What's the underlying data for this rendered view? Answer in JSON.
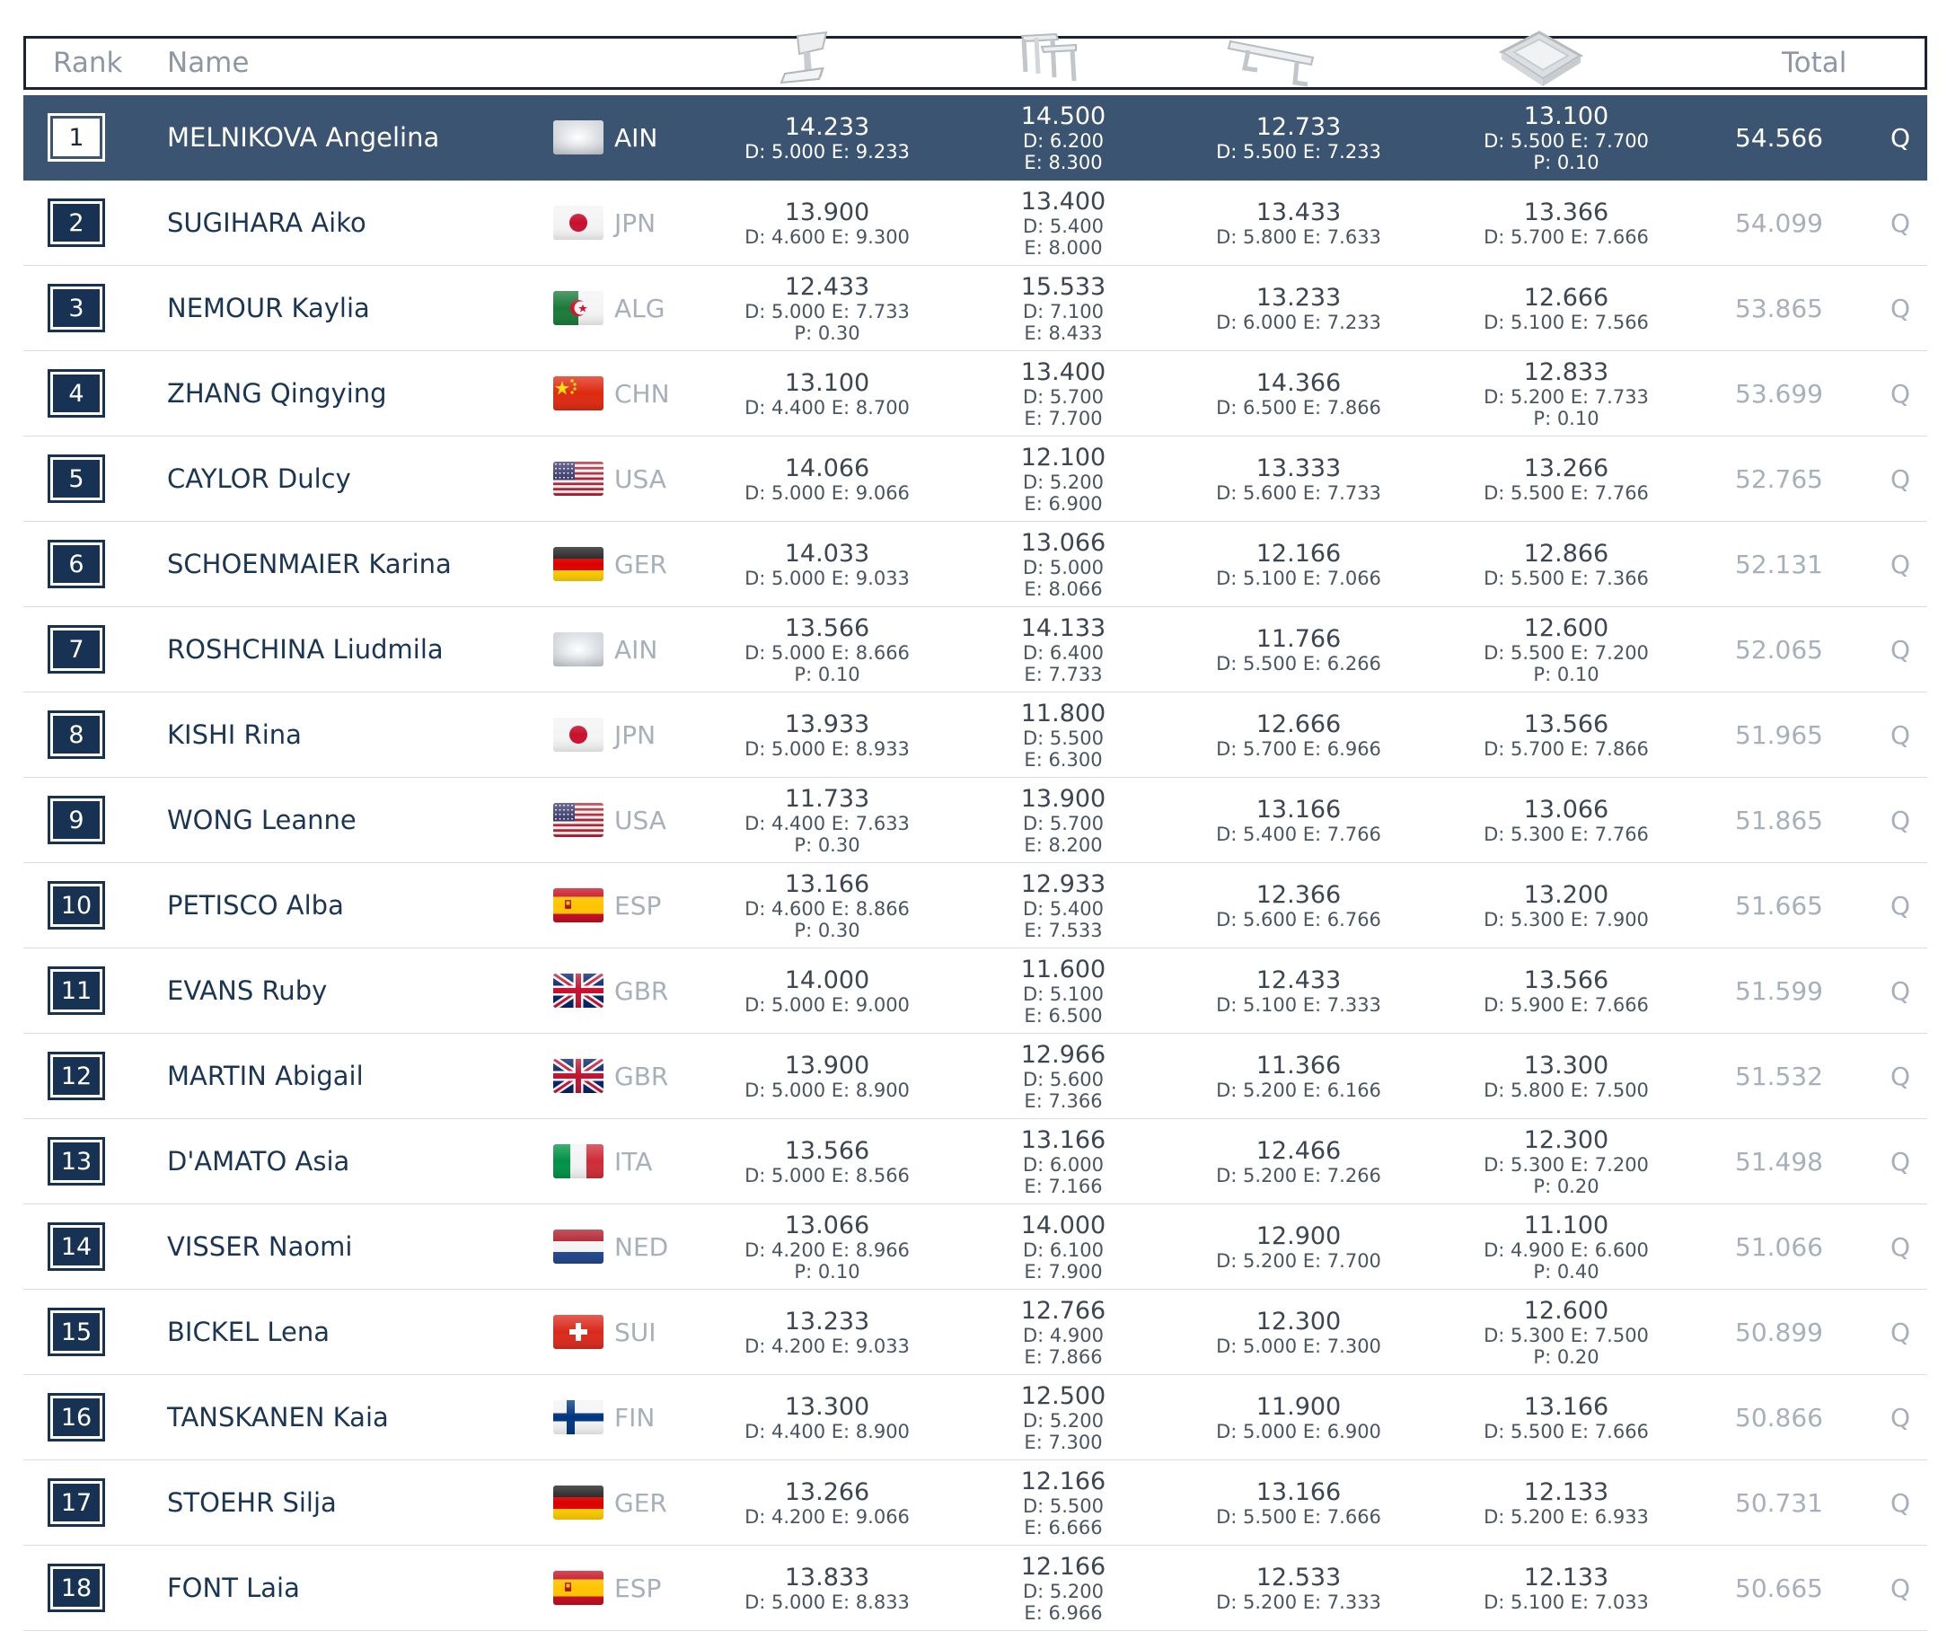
{
  "header": {
    "rank": "Rank",
    "name": "Name",
    "total": "Total",
    "apparatus_icons": [
      "vault-icon",
      "uneven-bars-icon",
      "balance-beam-icon",
      "floor-icon"
    ]
  },
  "colors": {
    "highlight": "#3a5472",
    "rank_box": "#173252",
    "name": "#1b3654",
    "muted": "#a7b0ba"
  },
  "rows": [
    {
      "rank": "1",
      "name": "MELNIKOVA Angelina",
      "noc": "AIN",
      "flag": "ain",
      "total": "54.566",
      "q": "Q",
      "apps": [
        {
          "score": "14.233",
          "lines": [
            "D: 5.000 E: 9.233"
          ]
        },
        {
          "score": "14.500",
          "lines": [
            "D: 6.200",
            "E: 8.300"
          ]
        },
        {
          "score": "12.733",
          "lines": [
            "D: 5.500 E: 7.233"
          ]
        },
        {
          "score": "13.100",
          "lines": [
            "D: 5.500 E: 7.700",
            "P: 0.10"
          ]
        }
      ]
    },
    {
      "rank": "2",
      "name": "SUGIHARA Aiko",
      "noc": "JPN",
      "flag": "jpn",
      "total": "54.099",
      "q": "Q",
      "apps": [
        {
          "score": "13.900",
          "lines": [
            "D: 4.600 E: 9.300"
          ]
        },
        {
          "score": "13.400",
          "lines": [
            "D: 5.400",
            "E: 8.000"
          ]
        },
        {
          "score": "13.433",
          "lines": [
            "D: 5.800 E: 7.633"
          ]
        },
        {
          "score": "13.366",
          "lines": [
            "D: 5.700 E: 7.666"
          ]
        }
      ]
    },
    {
      "rank": "3",
      "name": "NEMOUR Kaylia",
      "noc": "ALG",
      "flag": "alg",
      "total": "53.865",
      "q": "Q",
      "apps": [
        {
          "score": "12.433",
          "lines": [
            "D: 5.000 E: 7.733",
            "P: 0.30"
          ]
        },
        {
          "score": "15.533",
          "lines": [
            "D: 7.100",
            "E: 8.433"
          ]
        },
        {
          "score": "13.233",
          "lines": [
            "D: 6.000 E: 7.233"
          ]
        },
        {
          "score": "12.666",
          "lines": [
            "D: 5.100 E: 7.566"
          ]
        }
      ]
    },
    {
      "rank": "4",
      "name": "ZHANG Qingying",
      "noc": "CHN",
      "flag": "chn",
      "total": "53.699",
      "q": "Q",
      "apps": [
        {
          "score": "13.100",
          "lines": [
            "D: 4.400 E: 8.700"
          ]
        },
        {
          "score": "13.400",
          "lines": [
            "D: 5.700",
            "E: 7.700"
          ]
        },
        {
          "score": "14.366",
          "lines": [
            "D: 6.500 E: 7.866"
          ]
        },
        {
          "score": "12.833",
          "lines": [
            "D: 5.200 E: 7.733",
            "P: 0.10"
          ]
        }
      ]
    },
    {
      "rank": "5",
      "name": "CAYLOR Dulcy",
      "noc": "USA",
      "flag": "usa",
      "total": "52.765",
      "q": "Q",
      "apps": [
        {
          "score": "14.066",
          "lines": [
            "D: 5.000 E: 9.066"
          ]
        },
        {
          "score": "12.100",
          "lines": [
            "D: 5.200",
            "E: 6.900"
          ]
        },
        {
          "score": "13.333",
          "lines": [
            "D: 5.600 E: 7.733"
          ]
        },
        {
          "score": "13.266",
          "lines": [
            "D: 5.500 E: 7.766"
          ]
        }
      ]
    },
    {
      "rank": "6",
      "name": "SCHOENMAIER Karina",
      "noc": "GER",
      "flag": "ger",
      "total": "52.131",
      "q": "Q",
      "apps": [
        {
          "score": "14.033",
          "lines": [
            "D: 5.000 E: 9.033"
          ]
        },
        {
          "score": "13.066",
          "lines": [
            "D: 5.000",
            "E: 8.066"
          ]
        },
        {
          "score": "12.166",
          "lines": [
            "D: 5.100 E: 7.066"
          ]
        },
        {
          "score": "12.866",
          "lines": [
            "D: 5.500 E: 7.366"
          ]
        }
      ]
    },
    {
      "rank": "7",
      "name": "ROSHCHINA Liudmila",
      "noc": "AIN",
      "flag": "ain",
      "total": "52.065",
      "q": "Q",
      "apps": [
        {
          "score": "13.566",
          "lines": [
            "D: 5.000 E: 8.666",
            "P: 0.10"
          ]
        },
        {
          "score": "14.133",
          "lines": [
            "D: 6.400",
            "E: 7.733"
          ]
        },
        {
          "score": "11.766",
          "lines": [
            "D: 5.500 E: 6.266"
          ]
        },
        {
          "score": "12.600",
          "lines": [
            "D: 5.500 E: 7.200",
            "P: 0.10"
          ]
        }
      ]
    },
    {
      "rank": "8",
      "name": "KISHI Rina",
      "noc": "JPN",
      "flag": "jpn",
      "total": "51.965",
      "q": "Q",
      "apps": [
        {
          "score": "13.933",
          "lines": [
            "D: 5.000 E: 8.933"
          ]
        },
        {
          "score": "11.800",
          "lines": [
            "D: 5.500",
            "E: 6.300"
          ]
        },
        {
          "score": "12.666",
          "lines": [
            "D: 5.700 E: 6.966"
          ]
        },
        {
          "score": "13.566",
          "lines": [
            "D: 5.700 E: 7.866"
          ]
        }
      ]
    },
    {
      "rank": "9",
      "name": "WONG Leanne",
      "noc": "USA",
      "flag": "usa",
      "total": "51.865",
      "q": "Q",
      "apps": [
        {
          "score": "11.733",
          "lines": [
            "D: 4.400 E: 7.633",
            "P: 0.30"
          ]
        },
        {
          "score": "13.900",
          "lines": [
            "D: 5.700",
            "E: 8.200"
          ]
        },
        {
          "score": "13.166",
          "lines": [
            "D: 5.400 E: 7.766"
          ]
        },
        {
          "score": "13.066",
          "lines": [
            "D: 5.300 E: 7.766"
          ]
        }
      ]
    },
    {
      "rank": "10",
      "name": "PETISCO Alba",
      "noc": "ESP",
      "flag": "esp",
      "total": "51.665",
      "q": "Q",
      "apps": [
        {
          "score": "13.166",
          "lines": [
            "D: 4.600 E: 8.866",
            "P: 0.30"
          ]
        },
        {
          "score": "12.933",
          "lines": [
            "D: 5.400",
            "E: 7.533"
          ]
        },
        {
          "score": "12.366",
          "lines": [
            "D: 5.600 E: 6.766"
          ]
        },
        {
          "score": "13.200",
          "lines": [
            "D: 5.300 E: 7.900"
          ]
        }
      ]
    },
    {
      "rank": "11",
      "name": "EVANS Ruby",
      "noc": "GBR",
      "flag": "gbr",
      "total": "51.599",
      "q": "Q",
      "apps": [
        {
          "score": "14.000",
          "lines": [
            "D: 5.000 E: 9.000"
          ]
        },
        {
          "score": "11.600",
          "lines": [
            "D: 5.100",
            "E: 6.500"
          ]
        },
        {
          "score": "12.433",
          "lines": [
            "D: 5.100 E: 7.333"
          ]
        },
        {
          "score": "13.566",
          "lines": [
            "D: 5.900 E: 7.666"
          ]
        }
      ]
    },
    {
      "rank": "12",
      "name": "MARTIN Abigail",
      "noc": "GBR",
      "flag": "gbr",
      "total": "51.532",
      "q": "Q",
      "apps": [
        {
          "score": "13.900",
          "lines": [
            "D: 5.000 E: 8.900"
          ]
        },
        {
          "score": "12.966",
          "lines": [
            "D: 5.600",
            "E: 7.366"
          ]
        },
        {
          "score": "11.366",
          "lines": [
            "D: 5.200 E: 6.166"
          ]
        },
        {
          "score": "13.300",
          "lines": [
            "D: 5.800 E: 7.500"
          ]
        }
      ]
    },
    {
      "rank": "13",
      "name": "D'AMATO Asia",
      "noc": "ITA",
      "flag": "ita",
      "total": "51.498",
      "q": "Q",
      "apps": [
        {
          "score": "13.566",
          "lines": [
            "D: 5.000 E: 8.566"
          ]
        },
        {
          "score": "13.166",
          "lines": [
            "D: 6.000",
            "E: 7.166"
          ]
        },
        {
          "score": "12.466",
          "lines": [
            "D: 5.200 E: 7.266"
          ]
        },
        {
          "score": "12.300",
          "lines": [
            "D: 5.300 E: 7.200",
            "P: 0.20"
          ]
        }
      ]
    },
    {
      "rank": "14",
      "name": "VISSER Naomi",
      "noc": "NED",
      "flag": "ned",
      "total": "51.066",
      "q": "Q",
      "apps": [
        {
          "score": "13.066",
          "lines": [
            "D: 4.200 E: 8.966",
            "P: 0.10"
          ]
        },
        {
          "score": "14.000",
          "lines": [
            "D: 6.100",
            "E: 7.900"
          ]
        },
        {
          "score": "12.900",
          "lines": [
            "D: 5.200 E: 7.700"
          ]
        },
        {
          "score": "11.100",
          "lines": [
            "D: 4.900 E: 6.600",
            "P: 0.40"
          ]
        }
      ]
    },
    {
      "rank": "15",
      "name": "BICKEL Lena",
      "noc": "SUI",
      "flag": "sui",
      "total": "50.899",
      "q": "Q",
      "apps": [
        {
          "score": "13.233",
          "lines": [
            "D: 4.200 E: 9.033"
          ]
        },
        {
          "score": "12.766",
          "lines": [
            "D: 4.900",
            "E: 7.866"
          ]
        },
        {
          "score": "12.300",
          "lines": [
            "D: 5.000 E: 7.300"
          ]
        },
        {
          "score": "12.600",
          "lines": [
            "D: 5.300 E: 7.500",
            "P: 0.20"
          ]
        }
      ]
    },
    {
      "rank": "16",
      "name": "TANSKANEN Kaia",
      "noc": "FIN",
      "flag": "fin",
      "total": "50.866",
      "q": "Q",
      "apps": [
        {
          "score": "13.300",
          "lines": [
            "D: 4.400 E: 8.900"
          ]
        },
        {
          "score": "12.500",
          "lines": [
            "D: 5.200",
            "E: 7.300"
          ]
        },
        {
          "score": "11.900",
          "lines": [
            "D: 5.000 E: 6.900"
          ]
        },
        {
          "score": "13.166",
          "lines": [
            "D: 5.500 E: 7.666"
          ]
        }
      ]
    },
    {
      "rank": "17",
      "name": "STOEHR Silja",
      "noc": "GER",
      "flag": "ger",
      "total": "50.731",
      "q": "Q",
      "apps": [
        {
          "score": "13.266",
          "lines": [
            "D: 4.200 E: 9.066"
          ]
        },
        {
          "score": "12.166",
          "lines": [
            "D: 5.500",
            "E: 6.666"
          ]
        },
        {
          "score": "13.166",
          "lines": [
            "D: 5.500 E: 7.666"
          ]
        },
        {
          "score": "12.133",
          "lines": [
            "D: 5.200 E: 6.933"
          ]
        }
      ]
    },
    {
      "rank": "18",
      "name": "FONT Laia",
      "noc": "ESP",
      "flag": "esp",
      "total": "50.665",
      "q": "Q",
      "apps": [
        {
          "score": "13.833",
          "lines": [
            "D: 5.000 E: 8.833"
          ]
        },
        {
          "score": "12.166",
          "lines": [
            "D: 5.200",
            "E: 6.966"
          ]
        },
        {
          "score": "12.533",
          "lines": [
            "D: 5.200 E: 7.333"
          ]
        },
        {
          "score": "12.133",
          "lines": [
            "D: 5.100 E: 7.033"
          ]
        }
      ]
    }
  ]
}
